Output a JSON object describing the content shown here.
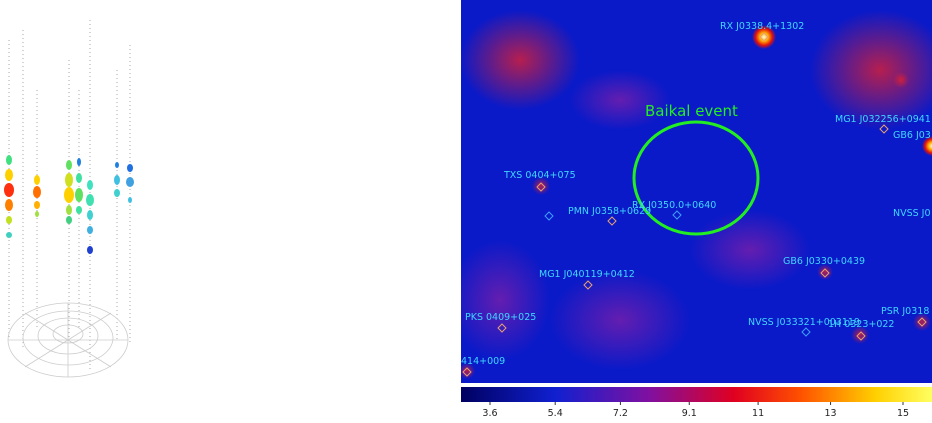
{
  "skymap": {
    "title": "Baikal event",
    "sources": [
      "RX J0338.4+1302",
      "MG1 J032256+0941",
      "GB6 J03",
      "TXS 0404+075",
      "PMN J0358+0629",
      "RX J0350.0+0640",
      "NVSS J0",
      "GB6 J0330+0439",
      "MG1 J040119+0412",
      "PKS 0409+025",
      "NVSS J033321+003119",
      "1H 0323+022",
      "PSR J0318",
      "414+009"
    ]
  },
  "colorbar": {
    "lim": [
      2.8,
      15.8
    ],
    "ticks": [
      3.6,
      5.4,
      7.2,
      9.1,
      11,
      13,
      15
    ]
  }
}
